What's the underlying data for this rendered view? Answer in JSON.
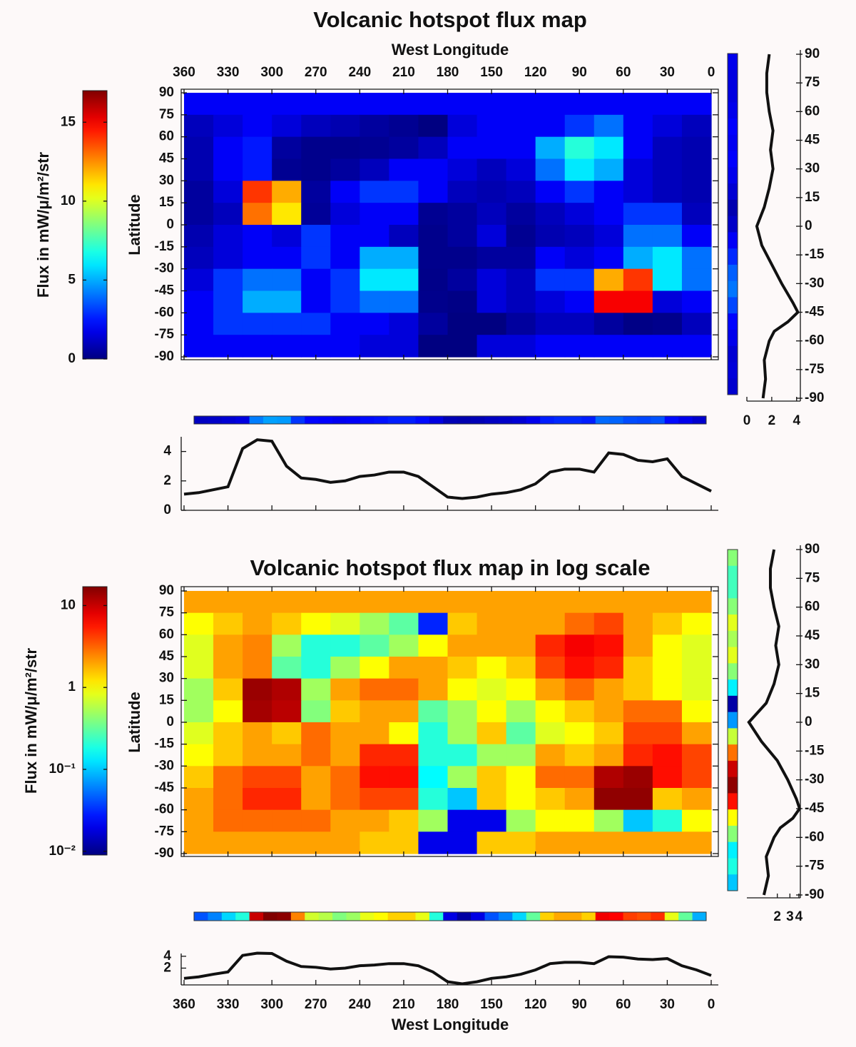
{
  "chart_data": [
    {
      "type": "heatmap",
      "title": "Volcanic hotspot flux map",
      "xlabel": "West Longitude",
      "ylabel": "Latitude",
      "colormap": "jet",
      "x": [
        350,
        330,
        310,
        290,
        270,
        250,
        230,
        210,
        190,
        170,
        150,
        130,
        110,
        90,
        70,
        50,
        30,
        10
      ],
      "y": [
        82.5,
        67.5,
        52.5,
        37.5,
        22.5,
        7.5,
        -7.5,
        -22.5,
        -37.5,
        -52.5,
        -67.5,
        -82.5
      ],
      "z": [
        [
          2,
          2,
          2,
          2,
          2,
          2,
          2,
          2,
          2,
          2,
          2,
          2,
          2,
          2,
          2,
          2,
          2,
          2
        ],
        [
          1,
          1.5,
          2,
          1.5,
          1,
          0.8,
          0.5,
          0.3,
          0.03,
          1.5,
          2,
          2,
          2,
          3,
          4,
          2,
          1.5,
          1
        ],
        [
          0.8,
          2,
          2.5,
          0.5,
          0.2,
          0.2,
          0.3,
          0.5,
          1,
          2,
          2,
          2,
          5,
          7,
          6,
          2,
          1,
          0.8
        ],
        [
          0.8,
          2,
          2.5,
          0.3,
          0.2,
          0.5,
          1,
          2,
          2,
          1.5,
          1,
          1.5,
          4,
          6,
          5,
          1.5,
          1,
          0.8
        ],
        [
          0.5,
          1.5,
          14,
          12,
          0.5,
          2,
          3,
          3,
          2,
          1,
          0.8,
          1,
          2,
          3,
          2,
          1.5,
          1,
          0.8
        ],
        [
          0.5,
          1,
          13,
          11,
          0.4,
          1.5,
          2,
          2,
          0.3,
          0.5,
          1,
          0.5,
          1,
          1.5,
          2,
          3,
          3,
          1
        ],
        [
          0.8,
          1.5,
          2,
          1.5,
          3,
          2,
          2,
          1,
          0.2,
          0.5,
          1.5,
          0.3,
          0.8,
          1,
          1.5,
          4,
          4,
          2
        ],
        [
          1,
          1.5,
          2,
          2,
          3,
          2,
          5,
          5,
          0.2,
          0.2,
          0.5,
          0.5,
          2,
          1.5,
          2,
          5,
          6,
          4
        ],
        [
          1.5,
          3,
          4,
          4,
          2,
          3,
          6,
          6,
          0.15,
          0.5,
          1.5,
          1,
          3,
          3,
          12,
          14,
          6,
          4
        ],
        [
          2,
          3,
          5,
          5,
          2,
          3,
          4,
          4,
          0.2,
          0.1,
          1.5,
          1,
          1.5,
          2,
          15,
          15,
          1.5,
          2
        ],
        [
          2,
          3,
          3,
          3,
          3,
          2,
          2,
          1.5,
          0.5,
          0.02,
          0.02,
          0.5,
          1,
          1,
          0.5,
          0.1,
          0.2,
          1
        ],
        [
          2,
          2,
          2,
          2,
          2,
          2,
          1.5,
          1.5,
          0.02,
          0.02,
          1.5,
          1.5,
          2,
          2,
          2,
          2,
          2,
          2
        ]
      ],
      "xlim": [
        360,
        0
      ],
      "ylim": [
        -90,
        90
      ],
      "xticks": [
        360,
        330,
        300,
        270,
        240,
        210,
        180,
        150,
        120,
        90,
        60,
        30,
        0
      ],
      "yticks": [
        90,
        75,
        60,
        45,
        30,
        15,
        0,
        -15,
        -30,
        -45,
        -60,
        -75,
        -90
      ],
      "colorbar": {
        "label": "Flux in mW/μ/m²/str",
        "lim": [
          0,
          17
        ],
        "ticks": [
          0,
          5,
          10,
          15
        ]
      }
    },
    {
      "type": "line",
      "orientation": "horizontal",
      "x": [
        360,
        350,
        340,
        330,
        320,
        310,
        300,
        290,
        280,
        270,
        260,
        250,
        240,
        230,
        220,
        210,
        200,
        190,
        180,
        170,
        160,
        150,
        140,
        130,
        120,
        110,
        100,
        90,
        80,
        70,
        60,
        50,
        40,
        30,
        20,
        10,
        0
      ],
      "values": [
        1.1,
        1.2,
        1.4,
        1.6,
        4.2,
        4.8,
        4.7,
        3.0,
        2.2,
        2.1,
        1.9,
        2.0,
        2.3,
        2.4,
        2.6,
        2.6,
        2.3,
        1.6,
        0.9,
        0.8,
        0.9,
        1.1,
        1.2,
        1.4,
        1.8,
        2.6,
        2.8,
        2.8,
        2.6,
        3.9,
        3.8,
        3.4,
        3.3,
        3.5,
        2.3,
        1.8,
        1.3
      ],
      "xlim": [
        360,
        0
      ],
      "ylim": [
        0,
        5
      ],
      "yticks": [
        0,
        2,
        4
      ],
      "strip_clim": [
        0,
        17
      ]
    },
    {
      "type": "line",
      "orientation": "vertical",
      "y": [
        90,
        80,
        70,
        60,
        50,
        40,
        30,
        20,
        10,
        0,
        -10,
        -20,
        -30,
        -40,
        -45,
        -50,
        -55,
        -60,
        -70,
        -80,
        -90
      ],
      "values": [
        1.8,
        1.6,
        1.6,
        1.8,
        2.1,
        1.9,
        2.1,
        1.8,
        1.4,
        0.8,
        1.2,
        2.0,
        2.8,
        3.7,
        4.1,
        3.3,
        2.2,
        1.8,
        1.4,
        1.5,
        1.3
      ],
      "xlim": [
        0,
        4.3
      ],
      "xticks": [
        0,
        2,
        4
      ],
      "ylim": [
        -90,
        90
      ],
      "yticks": [
        90,
        75,
        60,
        45,
        30,
        15,
        0,
        -15,
        -30,
        -45,
        -60,
        -75,
        -90
      ],
      "strip_clim": [
        0,
        17
      ]
    },
    {
      "type": "heatmap",
      "title": "Volcanic hotspot flux map in log scale",
      "ylabel": "Latitude",
      "colormap": "jet",
      "log_scale": true,
      "x": [
        350,
        330,
        310,
        290,
        270,
        250,
        230,
        210,
        190,
        170,
        150,
        130,
        110,
        90,
        70,
        50,
        30,
        10
      ],
      "y": [
        82.5,
        67.5,
        52.5,
        37.5,
        22.5,
        7.5,
        -7.5,
        -22.5,
        -37.5,
        -52.5,
        -67.5,
        -82.5
      ],
      "z": [
        [
          2,
          2,
          2,
          2,
          2,
          2,
          2,
          2,
          2,
          2,
          2,
          2,
          2,
          2,
          2,
          2,
          2,
          2
        ],
        [
          1,
          1.5,
          2,
          1.5,
          1,
          0.8,
          0.5,
          0.3,
          0.03,
          1.5,
          2,
          2,
          2,
          3,
          4,
          2,
          1.5,
          1
        ],
        [
          0.8,
          2,
          2.5,
          0.5,
          0.2,
          0.2,
          0.3,
          0.5,
          1,
          2,
          2,
          2,
          5,
          7,
          6,
          2,
          1,
          0.8
        ],
        [
          0.8,
          2,
          2.5,
          0.3,
          0.2,
          0.5,
          1,
          2,
          2,
          1.5,
          1,
          1.5,
          4,
          6,
          5,
          1.5,
          1,
          0.8
        ],
        [
          0.5,
          1.5,
          14,
          12,
          0.5,
          2,
          3,
          3,
          2,
          1,
          0.8,
          1,
          2,
          3,
          2,
          1.5,
          1,
          0.8
        ],
        [
          0.5,
          1,
          13,
          11,
          0.4,
          1.5,
          2,
          2,
          0.3,
          0.5,
          1,
          0.5,
          1,
          1.5,
          2,
          3,
          3,
          1
        ],
        [
          0.8,
          1.5,
          2,
          1.5,
          3,
          2,
          2,
          1,
          0.2,
          0.5,
          1.5,
          0.3,
          0.8,
          1,
          1.5,
          4,
          4,
          2
        ],
        [
          1,
          1.5,
          2,
          2,
          3,
          2,
          5,
          5,
          0.2,
          0.2,
          0.5,
          0.5,
          2,
          1.5,
          2,
          5,
          6,
          4
        ],
        [
          1.5,
          3,
          4,
          4,
          2,
          3,
          6,
          6,
          0.15,
          0.5,
          1.5,
          1,
          3,
          3,
          12,
          14,
          6,
          4
        ],
        [
          2,
          3,
          5,
          5,
          2,
          3,
          4,
          4,
          0.2,
          0.1,
          1.5,
          1,
          1.5,
          2,
          15,
          15,
          1.5,
          2
        ],
        [
          2,
          3,
          3,
          3,
          3,
          2,
          2,
          1.5,
          0.5,
          0.02,
          0.02,
          0.5,
          1,
          1,
          0.5,
          0.1,
          0.2,
          1
        ],
        [
          2,
          2,
          2,
          2,
          2,
          2,
          1.5,
          1.5,
          0.02,
          0.02,
          1.5,
          1.5,
          2,
          2,
          2,
          2,
          2,
          2
        ]
      ],
      "xlim": [
        360,
        0
      ],
      "ylim": [
        -90,
        90
      ],
      "yticks": [
        90,
        75,
        60,
        45,
        30,
        15,
        0,
        -15,
        -30,
        -45,
        -60,
        -75,
        -90
      ],
      "colorbar": {
        "label": "Flux in mW/μ/m²/str",
        "lim": [
          0.009,
          17
        ],
        "log_scale": true,
        "ticks": [
          {
            "value": 0.01,
            "label": "10⁻²"
          },
          {
            "value": 0.1,
            "label": "10⁻¹"
          },
          1,
          10
        ]
      }
    },
    {
      "type": "line",
      "orientation": "horizontal",
      "log_scale": true,
      "xlabel": "West Longitude",
      "x": [
        360,
        350,
        340,
        330,
        320,
        310,
        300,
        290,
        280,
        270,
        260,
        250,
        240,
        230,
        220,
        210,
        200,
        190,
        180,
        170,
        160,
        150,
        140,
        130,
        120,
        110,
        100,
        90,
        80,
        70,
        60,
        50,
        40,
        30,
        20,
        10,
        0
      ],
      "values": [
        1.1,
        1.2,
        1.4,
        1.6,
        4.2,
        4.8,
        4.7,
        3.0,
        2.2,
        2.1,
        1.9,
        2.0,
        2.3,
        2.4,
        2.6,
        2.6,
        2.3,
        1.6,
        0.9,
        0.8,
        0.9,
        1.1,
        1.2,
        1.4,
        1.8,
        2.6,
        2.8,
        2.8,
        2.6,
        3.9,
        3.8,
        3.4,
        3.3,
        3.5,
        2.3,
        1.8,
        1.3
      ],
      "xlim": [
        360,
        0
      ],
      "xticks": [
        360,
        330,
        300,
        270,
        240,
        210,
        180,
        150,
        120,
        90,
        60,
        30,
        0
      ],
      "ylim": [
        0.75,
        4.7
      ],
      "yticks": [
        2,
        4
      ],
      "strip_clim": [
        0.75,
        4.8
      ]
    },
    {
      "type": "line",
      "orientation": "vertical",
      "log_scale": true,
      "y": [
        90,
        80,
        70,
        60,
        50,
        40,
        30,
        20,
        10,
        0,
        -10,
        -20,
        -30,
        -40,
        -45,
        -50,
        -55,
        -60,
        -70,
        -80,
        -90
      ],
      "values": [
        1.8,
        1.6,
        1.6,
        1.8,
        2.1,
        1.9,
        2.1,
        1.8,
        1.4,
        0.8,
        1.2,
        2.0,
        2.8,
        3.7,
        4.1,
        3.3,
        2.2,
        1.8,
        1.4,
        1.5,
        1.3
      ],
      "xlim": [
        0.75,
        4.2
      ],
      "xticks": [
        2,
        3,
        4
      ],
      "ylim": [
        -90,
        90
      ],
      "yticks": [
        90,
        75,
        60,
        45,
        30,
        15,
        0,
        -15,
        -30,
        -45,
        -60,
        -75,
        -90
      ],
      "strip_clim": [
        0.75,
        4.2
      ]
    }
  ]
}
